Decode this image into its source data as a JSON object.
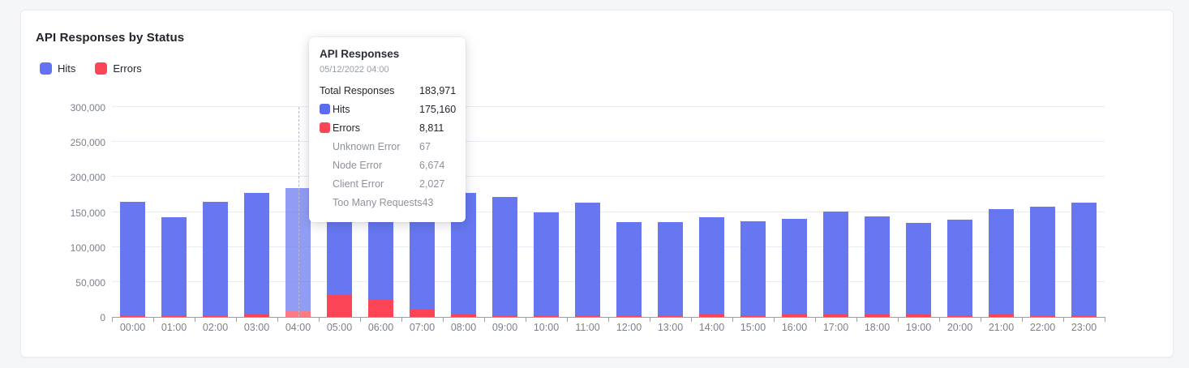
{
  "card": {
    "title": "API Responses by Status"
  },
  "legend": {
    "items": [
      {
        "label": "Hits",
        "color": "#6272f0"
      },
      {
        "label": "Errors",
        "color": "#fb4557"
      }
    ]
  },
  "chart_data": {
    "type": "bar",
    "stacked": true,
    "title": "API Responses by Status",
    "xlabel": "",
    "ylabel": "",
    "ylim": [
      0,
      300000
    ],
    "grid": "horizontal",
    "legend_position": "top-left",
    "categories": [
      "00:00",
      "01:00",
      "02:00",
      "03:00",
      "04:00",
      "05:00",
      "06:00",
      "07:00",
      "08:00",
      "09:00",
      "10:00",
      "11:00",
      "12:00",
      "13:00",
      "14:00",
      "15:00",
      "16:00",
      "17:00",
      "18:00",
      "19:00",
      "20:00",
      "21:00",
      "22:00",
      "23:00"
    ],
    "yticks": [
      {
        "value": 0,
        "label": "0"
      },
      {
        "value": 50000,
        "label": "50,000"
      },
      {
        "value": 100000,
        "label": "100,000"
      },
      {
        "value": 150000,
        "label": "150,000"
      },
      {
        "value": 200000,
        "label": "200,000"
      },
      {
        "value": 250000,
        "label": "250,000"
      },
      {
        "value": 300000,
        "label": "300,000"
      }
    ],
    "series": [
      {
        "name": "Hits",
        "color": "#6677f1",
        "values": [
          162500,
          140000,
          161500,
          173500,
          175160,
          121000,
          123000,
          141000,
          173500,
          168500,
          146500,
          160500,
          133500,
          132500,
          140000,
          134500,
          135000,
          148000,
          141000,
          130500,
          136500,
          151000,
          155500,
          160500
        ]
      },
      {
        "name": "Errors",
        "color": "#fb4557",
        "values": [
          2500,
          2000,
          2500,
          3500,
          8811,
          31000,
          26000,
          10000,
          3500,
          2500,
          2500,
          2500,
          2500,
          2500,
          3000,
          2500,
          5000,
          3000,
          3000,
          3500,
          2500,
          3000,
          2500,
          2500
        ]
      }
    ],
    "highlight_index": 4
  },
  "tooltip": {
    "title": "API Responses",
    "timestamp": "05/12/2022 04:00",
    "rows": [
      {
        "label": "Total Responses",
        "value": "183,971",
        "chip": "",
        "sub": false
      },
      {
        "label": "Hits",
        "value": "175,160",
        "chip": "#5c6cf0",
        "sub": false
      },
      {
        "label": "Errors",
        "value": "8,811",
        "chip": "#fb4557",
        "sub": false
      },
      {
        "label": "Unknown Error",
        "value": "67",
        "chip": "",
        "sub": true
      },
      {
        "label": "Node Error",
        "value": "6,674",
        "chip": "",
        "sub": true
      },
      {
        "label": "Client Error",
        "value": "2,027",
        "chip": "",
        "sub": true
      },
      {
        "label": "Too Many Requests",
        "value": "43",
        "chip": "",
        "sub": true
      }
    ]
  }
}
